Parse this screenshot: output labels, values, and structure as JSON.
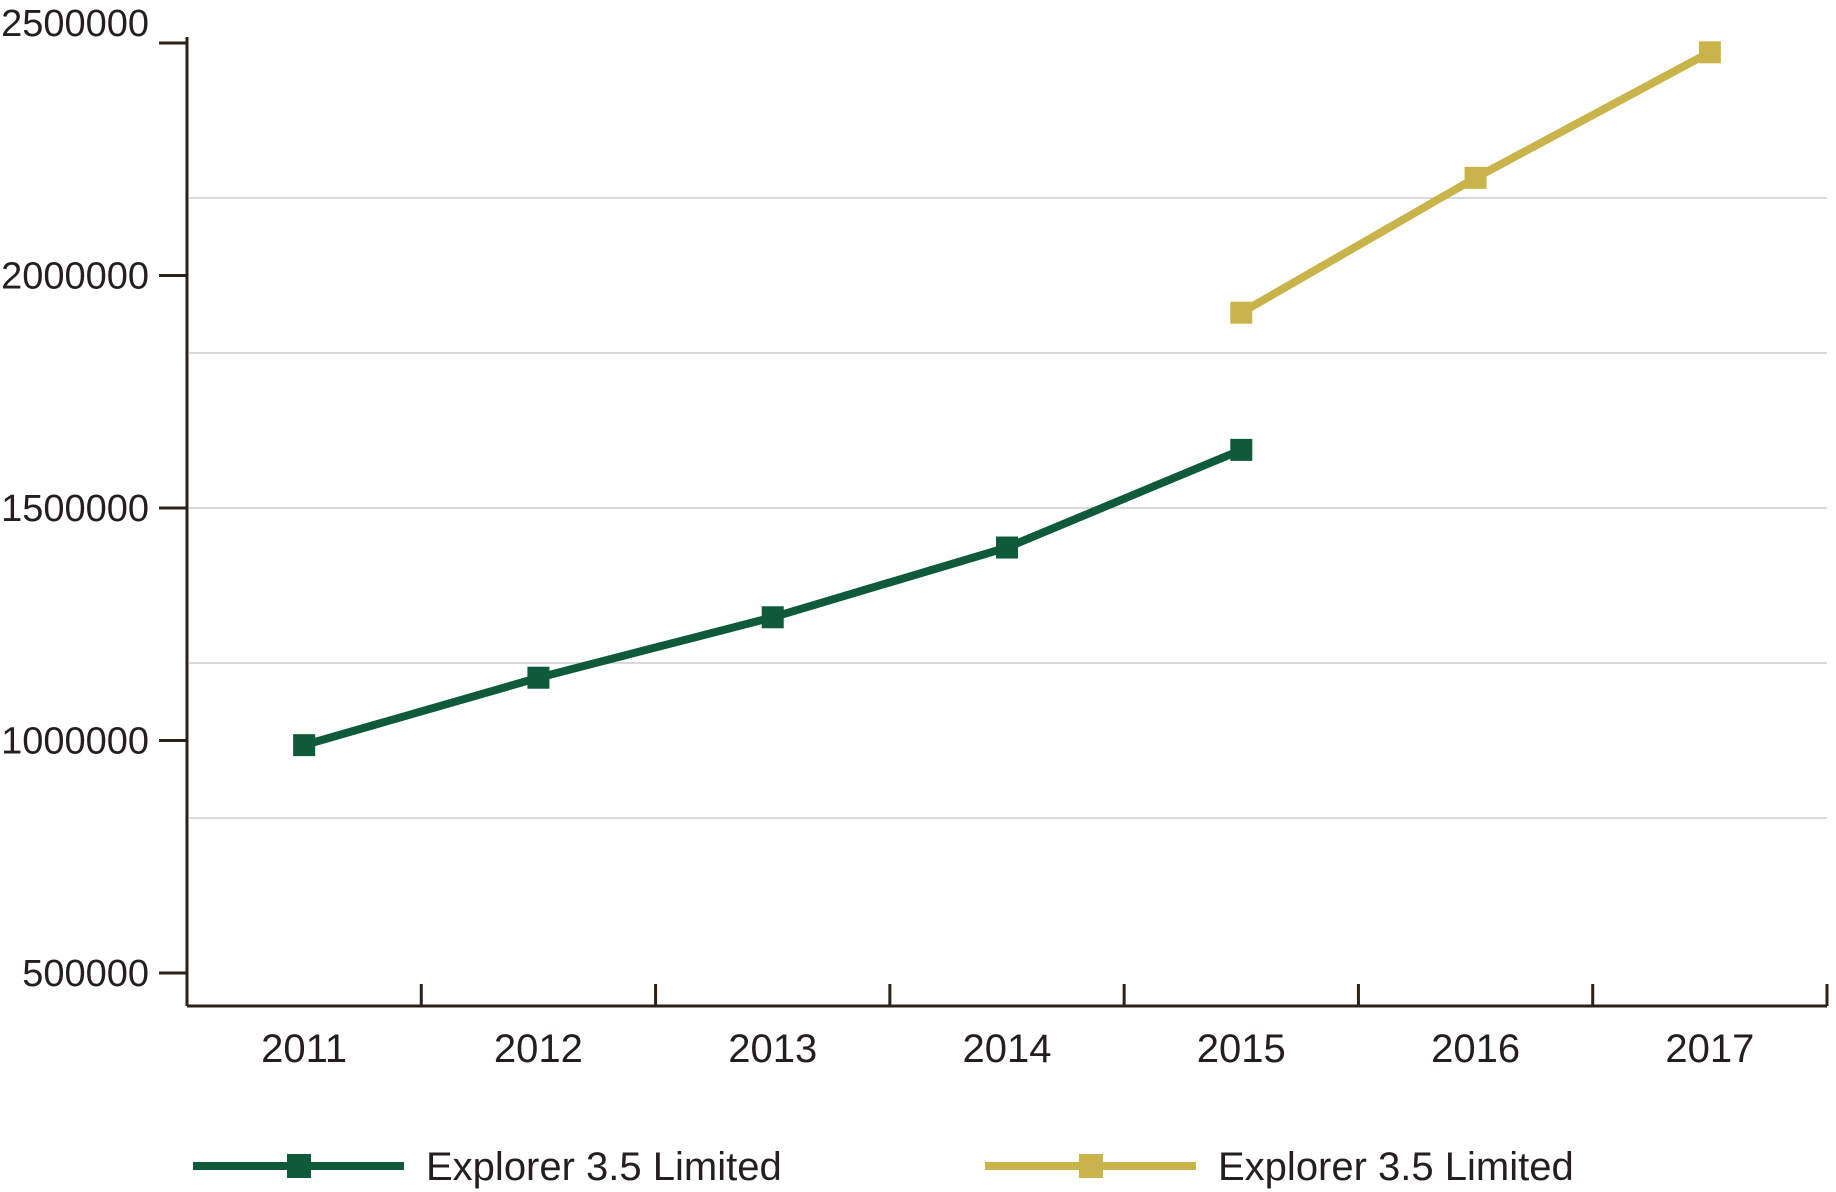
{
  "chart_data": {
    "type": "line",
    "title": "",
    "xlabel": "",
    "ylabel": "",
    "grid": "horizontal-light",
    "legend_position": "bottom",
    "categories": [
      "2011",
      "2012",
      "2013",
      "2014",
      "2015",
      "2016",
      "2017"
    ],
    "ylim": [
      500000,
      2500000
    ],
    "y_ticks": [
      500000,
      1000000,
      1500000,
      2000000,
      2500000
    ],
    "y_tick_labels": [
      "500000",
      "1000000",
      "1500000",
      "2000000",
      "2500000"
    ],
    "gridline_values": [
      833333,
      1166667,
      1500000,
      1833333,
      2166667
    ],
    "series": [
      {
        "name": "Explorer 3.5 Limited",
        "color": "#0E5A3A",
        "marker": "square",
        "categories": [
          "2011",
          "2012",
          "2013",
          "2014",
          "2015"
        ],
        "values": [
          990000,
          1135000,
          1265000,
          1415000,
          1625000
        ]
      },
      {
        "name": "Explorer 3.5 Limited",
        "color": "#C8B44B",
        "marker": "square",
        "categories": [
          "2015",
          "2016",
          "2017"
        ],
        "values": [
          1920000,
          2210000,
          2480000
        ]
      }
    ],
    "colors": {
      "axis": "#2B2118",
      "text": "#231F20",
      "gridline": "#D9D9D9",
      "background": "#FFFFFF"
    }
  }
}
